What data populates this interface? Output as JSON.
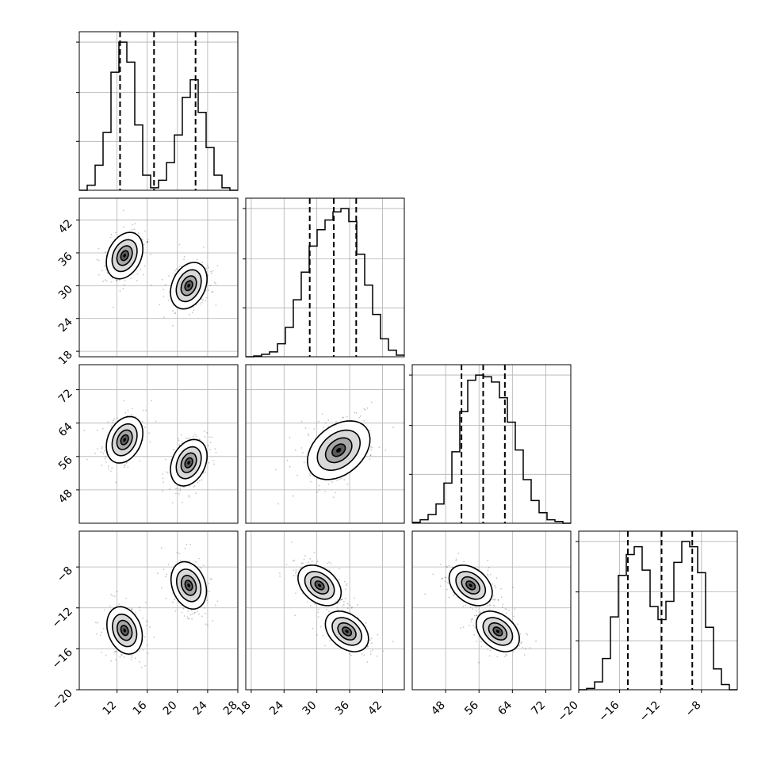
{
  "chart_data": {
    "type": "corner",
    "dimensions": [
      {
        "index": 0,
        "range": [
          7,
          28
        ],
        "ticks": [
          12,
          16,
          20,
          24,
          28
        ]
      },
      {
        "index": 1,
        "range": [
          17,
          46
        ],
        "ticks": [
          18,
          24,
          30,
          36,
          42
        ]
      },
      {
        "index": 2,
        "range": [
          40,
          78
        ],
        "ticks": [
          48,
          56,
          64,
          72
        ]
      },
      {
        "index": 3,
        "range": [
          -20,
          -4.5
        ],
        "ticks": [
          -20,
          -16,
          -12,
          -8
        ]
      }
    ],
    "axis_tick_labels": {
      "x_bottom": [
        [
          "12",
          "16",
          "20",
          "24",
          "28"
        ],
        [
          "18",
          "24",
          "30",
          "36",
          "42"
        ],
        [
          "48",
          "56",
          "64",
          "72"
        ],
        [
          "−20",
          "−16",
          "−12",
          "−8"
        ]
      ],
      "y_left": [
        [],
        [
          "18",
          "24",
          "30",
          "36",
          "42"
        ],
        [
          "48",
          "56",
          "64",
          "72"
        ],
        [
          "−20",
          "−16",
          "−12",
          "−8"
        ]
      ]
    },
    "histograms": [
      {
        "dimension": 0,
        "bin_edges": [
          7.0,
          8.05,
          9.1,
          10.15,
          11.2,
          12.25,
          13.3,
          14.35,
          15.4,
          16.45,
          17.5,
          18.55,
          19.6,
          20.65,
          21.7,
          22.75,
          23.8,
          24.85,
          25.9,
          26.95,
          28.0
        ],
        "counts": [
          0,
          0.2,
          1,
          2.3,
          4.7,
          5.9,
          5.1,
          2.6,
          0.6,
          0.1,
          0.4,
          1.1,
          2.2,
          3.7,
          4.4,
          3.1,
          1.7,
          0.6,
          0.1,
          0
        ],
        "quantiles": [
          12.4,
          16.9,
          22.4
        ]
      },
      {
        "dimension": 1,
        "bin_edges": [
          17.0,
          18.45,
          19.9,
          21.35,
          22.8,
          24.25,
          25.7,
          27.15,
          28.6,
          30.05,
          31.5,
          32.95,
          34.4,
          35.85,
          37.3,
          38.75,
          40.2,
          41.65,
          43.1,
          44.55,
          46.0
        ],
        "counts": [
          0,
          0.05,
          0.15,
          0.3,
          0.8,
          1.8,
          3.5,
          5.2,
          6.8,
          7.8,
          8.4,
          8.9,
          9.1,
          8.3,
          6.3,
          4.4,
          2.6,
          1.1,
          0.4,
          0.1
        ],
        "quantiles": [
          28.7,
          33.1,
          37.2
        ]
      },
      {
        "dimension": 2,
        "bin_edges": [
          40.0,
          41.9,
          43.8,
          45.7,
          47.6,
          49.5,
          51.4,
          53.3,
          55.2,
          57.1,
          59.0,
          60.9,
          62.8,
          64.7,
          66.6,
          68.5,
          70.4,
          72.3,
          74.2,
          76.1,
          78.0
        ],
        "counts": [
          0.05,
          0.2,
          0.5,
          1.1,
          2.3,
          4.1,
          6.4,
          8.2,
          8.5,
          8.4,
          8.1,
          7.2,
          5.8,
          4.2,
          2.5,
          1.3,
          0.6,
          0.2,
          0.1,
          0
        ],
        "quantiles": [
          51.8,
          57.0,
          62.2
        ]
      },
      {
        "dimension": 3,
        "bin_edges": [
          -20.0,
          -19.225,
          -18.45,
          -17.675,
          -16.9,
          -16.125,
          -15.35,
          -14.575,
          -13.8,
          -13.025,
          -12.25,
          -11.475,
          -10.7,
          -9.925,
          -9.15,
          -8.375,
          -7.6,
          -6.825,
          -6.05,
          -5.275,
          -4.5
        ],
        "counts": [
          0,
          0.05,
          0.3,
          1.2,
          2.8,
          4.4,
          5.2,
          5.5,
          4.6,
          3.2,
          2.7,
          3.4,
          4.9,
          5.7,
          5.5,
          4.5,
          2.4,
          0.8,
          0.2,
          0
        ],
        "quantiles": [
          -15.2,
          -11.9,
          -8.9
        ]
      }
    ],
    "pair_panels": [
      {
        "x_dimension": 0,
        "y_dimension": 1,
        "modes": [
          {
            "x": 13.0,
            "y": 35.5
          },
          {
            "x": 21.5,
            "y": 30.0
          }
        ]
      },
      {
        "x_dimension": 0,
        "y_dimension": 2,
        "modes": [
          {
            "x": 13.0,
            "y": 60.0
          },
          {
            "x": 21.5,
            "y": 54.5
          }
        ]
      },
      {
        "x_dimension": 1,
        "y_dimension": 2,
        "modes": [
          {
            "x": 34.0,
            "y": 57.5
          }
        ]
      },
      {
        "x_dimension": 0,
        "y_dimension": 3,
        "modes": [
          {
            "x": 13.0,
            "y": -14.2
          },
          {
            "x": 21.5,
            "y": -9.8
          }
        ]
      },
      {
        "x_dimension": 1,
        "y_dimension": 3,
        "modes": [
          {
            "x": 30.5,
            "y": -9.8
          },
          {
            "x": 35.5,
            "y": -14.3
          }
        ]
      },
      {
        "x_dimension": 2,
        "y_dimension": 3,
        "modes": [
          {
            "x": 54.0,
            "y": -9.8
          },
          {
            "x": 60.5,
            "y": -14.3
          }
        ]
      }
    ],
    "grid": true,
    "colors": {
      "histogram": "#000000",
      "contour": "#000000",
      "density": "#000000",
      "grid": "#b0b0b0"
    }
  }
}
